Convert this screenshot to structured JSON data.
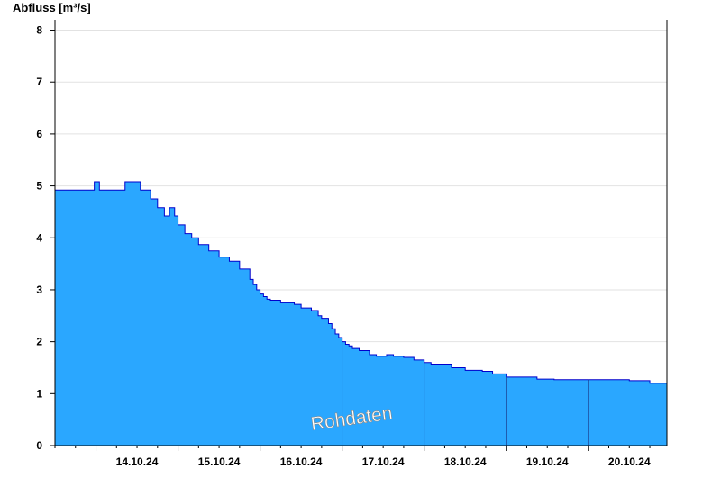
{
  "chart_data": {
    "type": "area",
    "ylabel": "Abfluss [m³/s]",
    "watermark": "Rohdaten",
    "ylim": [
      0,
      8.2
    ],
    "yticks": [
      0,
      1,
      2,
      3,
      4,
      5,
      6,
      7,
      8
    ],
    "x_range": [
      "13.10.24 12:00",
      "20.10.24 23:00"
    ],
    "day_labels": [
      "14.10.24",
      "15.10.24",
      "16.10.24",
      "17.10.24",
      "18.10.24",
      "19.10.24",
      "20.10.24"
    ],
    "grid": true,
    "fill_color": "#2AA7FF",
    "line_color": "#0000CC",
    "series": [
      {
        "values_x_hours_from_2024-10-13T12:00": [
          0,
          11,
          11.5,
          12.5,
          13,
          20,
          20.5,
          21,
          22,
          24,
          25,
          27,
          28,
          28.5,
          29,
          30,
          31,
          32,
          33,
          33.5,
          34,
          35,
          36,
          37,
          38,
          40,
          42,
          45,
          48,
          51,
          54,
          57,
          58,
          59,
          60,
          61,
          62,
          63,
          64,
          66,
          70,
          72,
          75,
          77,
          78,
          80,
          81,
          82,
          83,
          84,
          85,
          86,
          87,
          89,
          92,
          94,
          97,
          99,
          102,
          105,
          108,
          110,
          113,
          116,
          120,
          125,
          128,
          132,
          137,
          141,
          146,
          149,
          152,
          156,
          158,
          161,
          167,
          168,
          172,
          174,
          179
        ],
        "values": [
          4.92,
          4.92,
          5.08,
          5.08,
          4.92,
          4.92,
          5.08,
          5.08,
          5.08,
          5.08,
          4.92,
          4.92,
          4.75,
          4.75,
          4.75,
          4.58,
          4.58,
          4.42,
          4.42,
          4.58,
          4.58,
          4.42,
          4.25,
          4.25,
          4.08,
          4.0,
          3.87,
          3.75,
          3.63,
          3.55,
          3.4,
          3.2,
          3.1,
          3.0,
          2.92,
          2.87,
          2.82,
          2.8,
          2.8,
          2.75,
          2.72,
          2.65,
          2.6,
          2.5,
          2.45,
          2.35,
          2.25,
          2.15,
          2.08,
          2.0,
          1.95,
          1.92,
          1.87,
          1.83,
          1.75,
          1.72,
          1.75,
          1.72,
          1.7,
          1.65,
          1.6,
          1.57,
          1.57,
          1.5,
          1.45,
          1.43,
          1.38,
          1.32,
          1.32,
          1.28,
          1.27,
          1.27,
          1.27,
          1.27,
          1.27,
          1.27,
          1.27,
          1.25,
          1.25,
          1.2,
          1.2
        ]
      }
    ]
  }
}
